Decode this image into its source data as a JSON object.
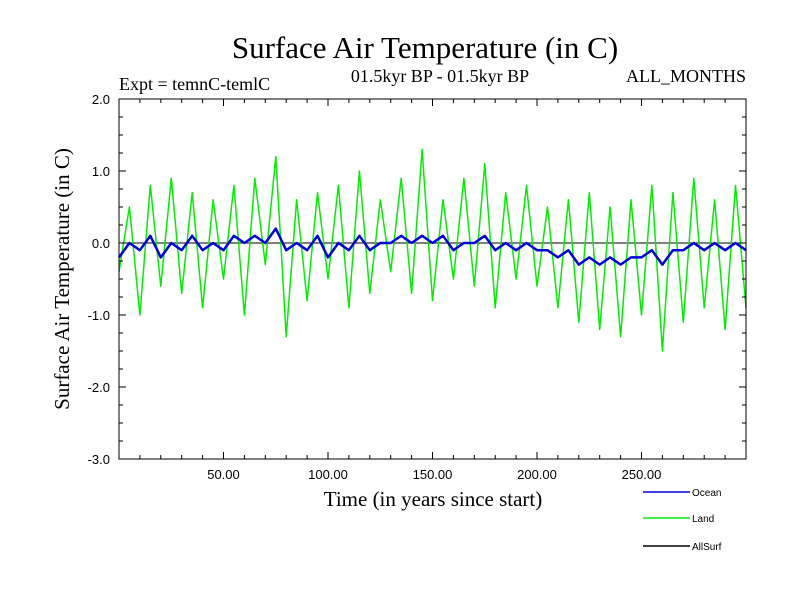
{
  "chart_data": {
    "type": "line",
    "title": "Surface Air Temperature (in C)",
    "subtitle_left": "Expt = temnC-temlC",
    "subtitle_center": "01.5kyr BP - 01.5kyr BP",
    "subtitle_right": "ALL_MONTHS",
    "xlabel": "Time (in years since start)",
    "ylabel": "Surface Air Temperature (in C)",
    "xlim": [
      0,
      300
    ],
    "ylim": [
      -3.0,
      2.0
    ],
    "x_ticks": [
      50,
      100,
      150,
      200,
      250
    ],
    "x_tick_labels": [
      "50.00",
      "100.00",
      "150.00",
      "200.00",
      "250.00"
    ],
    "y_ticks": [
      2.0,
      1.0,
      0.0,
      -1.0,
      -2.0,
      -3.0
    ],
    "y_tick_labels": [
      "2.0",
      "1.0",
      "0.0",
      "-1.0",
      "-2.0",
      "-3.0"
    ],
    "zero_line": 0.0,
    "series": [
      {
        "name": "Land",
        "color": "#00ee00",
        "x": [
          0,
          5,
          10,
          15,
          20,
          25,
          30,
          35,
          40,
          45,
          50,
          55,
          60,
          65,
          70,
          75,
          80,
          85,
          90,
          95,
          100,
          105,
          110,
          115,
          120,
          125,
          130,
          135,
          140,
          145,
          150,
          155,
          160,
          165,
          170,
          175,
          180,
          185,
          190,
          195,
          200,
          205,
          210,
          215,
          220,
          225,
          230,
          235,
          240,
          245,
          250,
          255,
          260,
          265,
          270,
          275,
          280,
          285,
          290,
          295,
          300
        ],
        "values": [
          -0.4,
          0.5,
          -1.0,
          0.8,
          -0.6,
          0.9,
          -0.7,
          0.7,
          -0.9,
          0.6,
          -0.5,
          0.8,
          -1.0,
          0.9,
          -0.3,
          1.2,
          -1.3,
          0.6,
          -0.8,
          0.7,
          -0.5,
          0.8,
          -0.9,
          1.0,
          -0.7,
          0.6,
          -0.4,
          0.9,
          -0.7,
          1.3,
          -0.8,
          0.6,
          -0.5,
          0.9,
          -0.6,
          1.1,
          -0.9,
          0.7,
          -0.5,
          0.8,
          -0.6,
          0.5,
          -0.9,
          0.6,
          -1.1,
          0.7,
          -1.2,
          0.5,
          -1.3,
          0.6,
          -1.0,
          0.8,
          -1.5,
          0.7,
          -1.1,
          0.9,
          -0.9,
          0.6,
          -1.2,
          0.8,
          -0.9
        ]
      },
      {
        "name": "Ocean",
        "color": "#0000dd",
        "x": [
          0,
          5,
          10,
          15,
          20,
          25,
          30,
          35,
          40,
          45,
          50,
          55,
          60,
          65,
          70,
          75,
          80,
          85,
          90,
          95,
          100,
          105,
          110,
          115,
          120,
          125,
          130,
          135,
          140,
          145,
          150,
          155,
          160,
          165,
          170,
          175,
          180,
          185,
          190,
          195,
          200,
          205,
          210,
          215,
          220,
          225,
          230,
          235,
          240,
          245,
          250,
          255,
          260,
          265,
          270,
          275,
          280,
          285,
          290,
          295,
          300
        ],
        "values": [
          -0.2,
          0.0,
          -0.1,
          0.1,
          -0.2,
          0.0,
          -0.1,
          0.1,
          -0.1,
          0.0,
          -0.1,
          0.1,
          0.0,
          0.1,
          0.0,
          0.2,
          -0.1,
          0.0,
          -0.1,
          0.1,
          -0.2,
          0.0,
          -0.1,
          0.1,
          -0.1,
          0.0,
          0.0,
          0.1,
          0.0,
          0.1,
          0.0,
          0.1,
          -0.1,
          0.0,
          0.0,
          0.1,
          -0.1,
          0.0,
          -0.1,
          0.0,
          -0.1,
          -0.1,
          -0.2,
          -0.1,
          -0.3,
          -0.2,
          -0.3,
          -0.2,
          -0.3,
          -0.2,
          -0.2,
          -0.1,
          -0.3,
          -0.1,
          -0.1,
          0.0,
          -0.1,
          0.0,
          -0.1,
          0.0,
          -0.1
        ]
      },
      {
        "name": "AllSurf",
        "color": "#000000",
        "x": [],
        "values": []
      }
    ],
    "legend": [
      {
        "name": "Ocean",
        "color": "#0000dd"
      },
      {
        "name": "Land",
        "color": "#00ee00"
      },
      {
        "name": "AllSurf",
        "color": "#000000"
      }
    ]
  }
}
